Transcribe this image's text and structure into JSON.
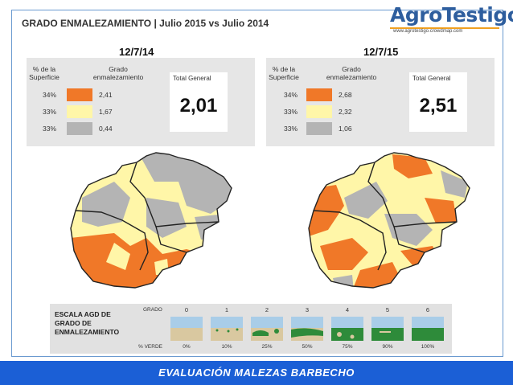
{
  "title": "GRADO ENMALEZAMIENTO | Julio 2015 vs Julio 2014",
  "logo": {
    "name": "AgroTestigo",
    "url": "www.agrotestigo.crowdmap.com"
  },
  "colors": {
    "high": "#f07828",
    "mid": "#fff6a8",
    "low": "#b4b4b4",
    "footer": "#1b5fd6",
    "frame": "#6a9ad0"
  },
  "left": {
    "date": "12/7/14",
    "pct_header": "% de la Superficie",
    "grade_header": "Grado enmalezamiento",
    "rows": [
      {
        "pct": "34%",
        "value": "2,41",
        "color": "#f07828"
      },
      {
        "pct": "33%",
        "value": "1,67",
        "color": "#fff6a8"
      },
      {
        "pct": "33%",
        "value": "0,44",
        "color": "#b4b4b4"
      }
    ],
    "total_label": "Total General",
    "total_value": "2,01"
  },
  "right": {
    "date": "12/7/15",
    "pct_header": "% de la Superficie",
    "grade_header": "Grado enmalezamiento",
    "rows": [
      {
        "pct": "34%",
        "value": "2,68",
        "color": "#f07828"
      },
      {
        "pct": "33%",
        "value": "2,32",
        "color": "#fff6a8"
      },
      {
        "pct": "33%",
        "value": "1,06",
        "color": "#b4b4b4"
      }
    ],
    "total_label": "Total General",
    "total_value": "2,51"
  },
  "scale": {
    "title_line1": "ESCALA AGD DE",
    "title_line2": "GRADO DE",
    "title_line3": "ENMALEZAMIENTO",
    "grado_label": "GRADO",
    "verde_label": "% VERDE",
    "grades": [
      "0",
      "1",
      "2",
      "3",
      "4",
      "5",
      "6"
    ],
    "percents": [
      "0%",
      "10%",
      "25%",
      "50%",
      "75%",
      "90%",
      "100%"
    ]
  },
  "footer": "EVALUACIÓN MALEZAS BARBECHO"
}
